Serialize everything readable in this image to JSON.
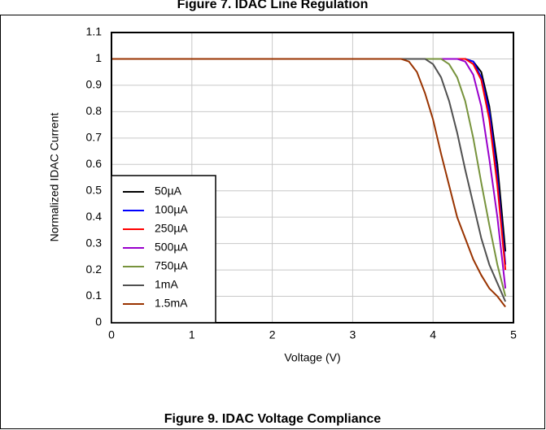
{
  "page_caption": "Figure 7. IDAC Line Regulation",
  "chart_data": {
    "type": "line",
    "caption": "Figure 9. IDAC Voltage Compliance",
    "x_label": "Voltage (V)",
    "y_label": "Normalized IDAC Current",
    "x": [
      0,
      3.5,
      3.6,
      3.7,
      3.8,
      3.9,
      4.0,
      4.1,
      4.2,
      4.3,
      4.4,
      4.5,
      4.6,
      4.7,
      4.8,
      4.9
    ],
    "series": [
      {
        "name": "50µA",
        "color": "#000000",
        "values": [
          1,
          1,
          1,
          1,
          1,
          1,
          1,
          1,
          1,
          1,
          1,
          0.99,
          0.95,
          0.82,
          0.6,
          0.27
        ]
      },
      {
        "name": "100µA",
        "color": "#0000ff",
        "values": [
          1,
          1,
          1,
          1,
          1,
          1,
          1,
          1,
          1,
          1,
          1,
          0.99,
          0.93,
          0.8,
          0.55,
          0.22
        ]
      },
      {
        "name": "250µA",
        "color": "#ff0000",
        "values": [
          1,
          1,
          1,
          1,
          1,
          1,
          1,
          1,
          1,
          1,
          1,
          0.98,
          0.92,
          0.77,
          0.52,
          0.2
        ]
      },
      {
        "name": "500µA",
        "color": "#9900cc",
        "values": [
          1,
          1,
          1,
          1,
          1,
          1,
          1,
          1,
          1,
          1,
          0.99,
          0.94,
          0.82,
          0.62,
          0.4,
          0.13
        ]
      },
      {
        "name": "750µA",
        "color": "#77933c",
        "values": [
          1,
          1,
          1,
          1,
          1,
          1,
          1,
          1,
          0.98,
          0.93,
          0.84,
          0.7,
          0.53,
          0.37,
          0.22,
          0.1
        ]
      },
      {
        "name": "1mA",
        "color": "#505050",
        "values": [
          1,
          1,
          1,
          1,
          1,
          1,
          0.98,
          0.93,
          0.84,
          0.72,
          0.58,
          0.45,
          0.32,
          0.22,
          0.15,
          0.08
        ]
      },
      {
        "name": "1.5mA",
        "color": "#993300",
        "values": [
          1,
          1,
          1,
          0.99,
          0.95,
          0.87,
          0.77,
          0.64,
          0.52,
          0.4,
          0.32,
          0.24,
          0.18,
          0.13,
          0.1,
          0.06
        ]
      }
    ],
    "xlim": [
      0,
      5
    ],
    "xticks": [
      0,
      1,
      2,
      3,
      4,
      5
    ],
    "ylim": [
      0,
      1.1
    ],
    "yticks": [
      0,
      0.1,
      0.2,
      0.3,
      0.4,
      0.5,
      0.6,
      0.7,
      0.8,
      0.9,
      1,
      1.1
    ],
    "grid": true,
    "legend": "lower left"
  }
}
